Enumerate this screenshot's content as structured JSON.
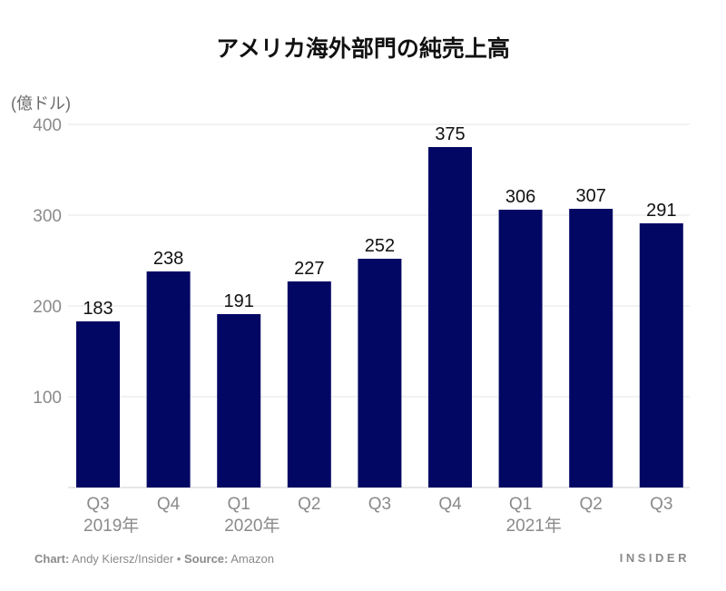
{
  "chart_data": {
    "type": "bar",
    "title": "アメリカ海外部門の純売上高",
    "ylabel": "(億ドル)",
    "xlabel": "",
    "ylim": [
      0,
      400
    ],
    "yticks": [
      100,
      200,
      300,
      400
    ],
    "grid": true,
    "categories": [
      "Q3",
      "Q4",
      "Q1",
      "Q2",
      "Q3",
      "Q4",
      "Q1",
      "Q2",
      "Q3"
    ],
    "year_labels": [
      {
        "index": 0,
        "text": "2019年"
      },
      {
        "index": 2,
        "text": "2020年"
      },
      {
        "index": 6,
        "text": "2021年"
      }
    ],
    "values": [
      183,
      238,
      191,
      227,
      252,
      375,
      306,
      307,
      291
    ],
    "bar_color": "#020764",
    "grid_color": "#e6e6e6"
  },
  "footer": {
    "chart_label": "Chart:",
    "chart_author": " Andy Kiersz/Insider • ",
    "source_label": "Source:",
    "source_value": " Amazon",
    "brand": "INSIDER"
  }
}
